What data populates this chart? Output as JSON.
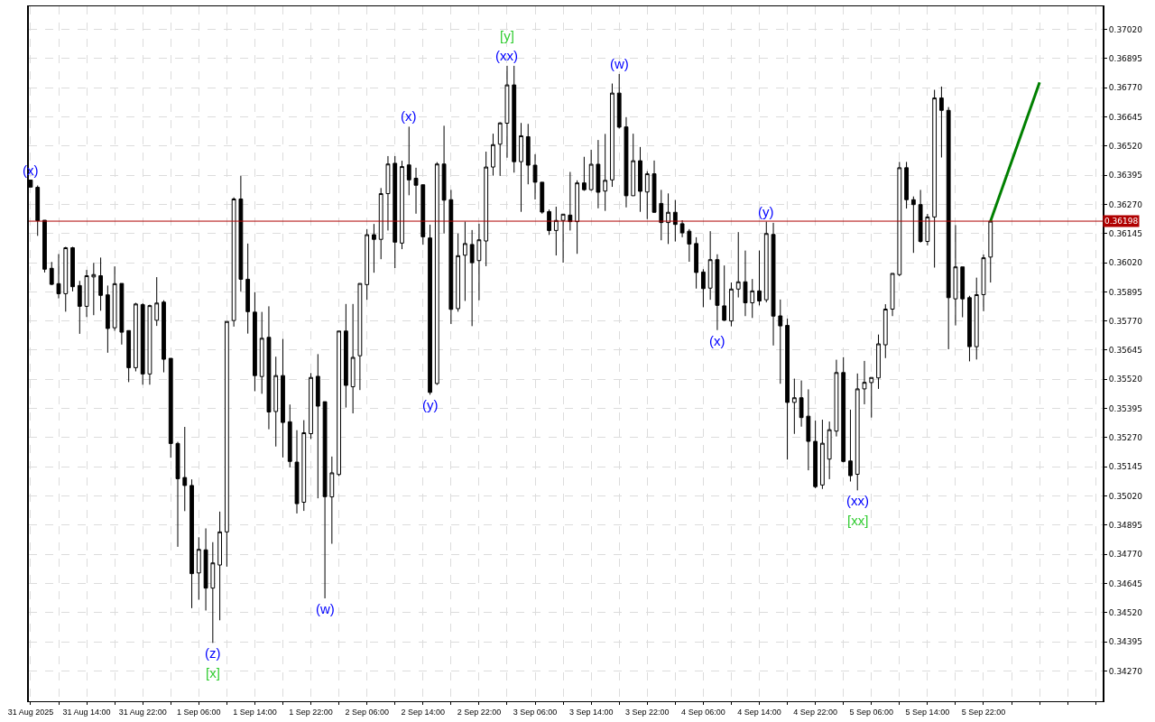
{
  "chart_data": {
    "type": "candlestick",
    "x": [
      "2025-08-31T06:00",
      "2025-08-31T07:00",
      "2025-08-31T08:00",
      "2025-08-31T09:00",
      "2025-08-31T10:00",
      "2025-08-31T11:00",
      "2025-08-31T12:00",
      "2025-08-31T13:00",
      "2025-08-31T14:00",
      "2025-08-31T15:00",
      "2025-08-31T16:00",
      "2025-08-31T17:00",
      "2025-08-31T18:00",
      "2025-08-31T19:00",
      "2025-08-31T20:00",
      "2025-08-31T21:00",
      "2025-08-31T22:00",
      "2025-08-31T23:00",
      "2025-09-01T00:00",
      "2025-09-01T01:00",
      "2025-09-01T02:00",
      "2025-09-01T03:00",
      "2025-09-01T04:00",
      "2025-09-01T05:00",
      "2025-09-01T06:00",
      "2025-09-01T07:00",
      "2025-09-01T08:00",
      "2025-09-01T09:00",
      "2025-09-01T10:00",
      "2025-09-01T11:00",
      "2025-09-01T12:00",
      "2025-09-01T13:00",
      "2025-09-01T14:00",
      "2025-09-01T15:00",
      "2025-09-01T16:00",
      "2025-09-01T17:00",
      "2025-09-01T18:00",
      "2025-09-01T19:00",
      "2025-09-01T20:00",
      "2025-09-01T21:00",
      "2025-09-01T22:00",
      "2025-09-01T23:00",
      "2025-09-02T00:00",
      "2025-09-02T01:00",
      "2025-09-02T02:00",
      "2025-09-02T03:00",
      "2025-09-02T04:00",
      "2025-09-02T05:00",
      "2025-09-02T06:00",
      "2025-09-02T07:00",
      "2025-09-02T08:00",
      "2025-09-02T09:00",
      "2025-09-02T10:00",
      "2025-09-02T11:00",
      "2025-09-02T12:00",
      "2025-09-02T13:00",
      "2025-09-02T14:00",
      "2025-09-02T15:00",
      "2025-09-02T16:00",
      "2025-09-02T17:00",
      "2025-09-02T18:00",
      "2025-09-02T19:00",
      "2025-09-02T20:00",
      "2025-09-02T21:00",
      "2025-09-02T22:00",
      "2025-09-02T23:00",
      "2025-09-03T00:00",
      "2025-09-03T01:00",
      "2025-09-03T02:00",
      "2025-09-03T03:00",
      "2025-09-03T04:00",
      "2025-09-03T05:00",
      "2025-09-03T06:00",
      "2025-09-03T07:00",
      "2025-09-03T08:00",
      "2025-09-03T09:00",
      "2025-09-03T10:00",
      "2025-09-03T11:00",
      "2025-09-03T12:00",
      "2025-09-03T13:00",
      "2025-09-03T14:00",
      "2025-09-03T15:00",
      "2025-09-03T16:00",
      "2025-09-03T17:00",
      "2025-09-03T18:00",
      "2025-09-03T19:00",
      "2025-09-03T20:00",
      "2025-09-03T21:00",
      "2025-09-03T22:00",
      "2025-09-03T23:00",
      "2025-09-04T00:00",
      "2025-09-04T01:00",
      "2025-09-04T02:00",
      "2025-09-04T03:00",
      "2025-09-04T04:00",
      "2025-09-04T05:00",
      "2025-09-04T06:00",
      "2025-09-04T07:00",
      "2025-09-04T08:00",
      "2025-09-04T09:00",
      "2025-09-04T10:00",
      "2025-09-04T11:00",
      "2025-09-04T12:00",
      "2025-09-04T13:00",
      "2025-09-04T14:00",
      "2025-09-04T15:00",
      "2025-09-04T16:00",
      "2025-09-04T17:00",
      "2025-09-04T18:00",
      "2025-09-04T19:00",
      "2025-09-04T20:00",
      "2025-09-04T21:00",
      "2025-09-04T22:00",
      "2025-09-04T23:00",
      "2025-09-05T00:00",
      "2025-09-05T01:00",
      "2025-09-05T02:00",
      "2025-09-05T03:00",
      "2025-09-05T04:00",
      "2025-09-05T05:00",
      "2025-09-05T06:00",
      "2025-09-05T07:00",
      "2025-09-05T08:00",
      "2025-09-05T09:00",
      "2025-09-05T10:00",
      "2025-09-05T11:00",
      "2025-09-05T12:00",
      "2025-09-05T13:00",
      "2025-09-05T14:00",
      "2025-09-05T15:00",
      "2025-09-05T16:00",
      "2025-09-05T17:00",
      "2025-09-05T18:00",
      "2025-09-05T19:00",
      "2025-09-05T20:00",
      "2025-09-05T21:00",
      "2025-09-05T22:00",
      "2025-09-05T23:00"
    ],
    "ohlc": [
      [
        0.36374,
        0.36374,
        0.36344,
        0.36344
      ],
      [
        0.36343,
        0.36351,
        0.36135,
        0.362
      ],
      [
        0.36202,
        0.36202,
        0.35978,
        0.35992
      ],
      [
        0.35996,
        0.36023,
        0.35924,
        0.35927
      ],
      [
        0.3593,
        0.36057,
        0.35867,
        0.35887
      ],
      [
        0.35887,
        0.36088,
        0.3581,
        0.36084
      ],
      [
        0.36084,
        0.36088,
        0.35897,
        0.35917
      ],
      [
        0.35922,
        0.35942,
        0.35715,
        0.35833
      ],
      [
        0.35833,
        0.35989,
        0.35787,
        0.35964
      ],
      [
        0.35959,
        0.36019,
        0.35795,
        0.35969
      ],
      [
        0.35964,
        0.36042,
        0.35814,
        0.3588
      ],
      [
        0.35882,
        0.35922,
        0.35634,
        0.35738
      ],
      [
        0.35741,
        0.36004,
        0.35728,
        0.3593
      ],
      [
        0.35931,
        0.35931,
        0.35669,
        0.35722
      ],
      [
        0.35729,
        0.35729,
        0.35508,
        0.3557
      ],
      [
        0.3557,
        0.35848,
        0.35554,
        0.35843
      ],
      [
        0.3584,
        0.35846,
        0.35497,
        0.35543
      ],
      [
        0.35543,
        0.3584,
        0.35497,
        0.35836
      ],
      [
        0.35773,
        0.35958,
        0.35749,
        0.35847
      ],
      [
        0.35851,
        0.35859,
        0.3555,
        0.35606
      ],
      [
        0.3561,
        0.3561,
        0.35184,
        0.35245
      ],
      [
        0.35245,
        0.35252,
        0.34802,
        0.35094
      ],
      [
        0.35099,
        0.35316,
        0.34955,
        0.35065
      ],
      [
        0.35065,
        0.35091,
        0.34539,
        0.34687
      ],
      [
        0.3469,
        0.34843,
        0.34575,
        0.34791
      ],
      [
        0.34789,
        0.34881,
        0.34529,
        0.34625
      ],
      [
        0.34625,
        0.34822,
        0.3439,
        0.34733
      ],
      [
        0.34724,
        0.34953,
        0.34487,
        0.34866
      ],
      [
        0.34866,
        0.35768,
        0.34717,
        0.35768
      ],
      [
        0.35772,
        0.363,
        0.35746,
        0.36293
      ],
      [
        0.36293,
        0.36392,
        0.35897,
        0.35949
      ],
      [
        0.35949,
        0.36102,
        0.35716,
        0.3581
      ],
      [
        0.35808,
        0.35894,
        0.35469,
        0.35536
      ],
      [
        0.35532,
        0.35809,
        0.35458,
        0.35696
      ],
      [
        0.357,
        0.35833,
        0.35306,
        0.3538
      ],
      [
        0.35382,
        0.35617,
        0.35232,
        0.35536
      ],
      [
        0.35536,
        0.35693,
        0.35185,
        0.35335
      ],
      [
        0.35338,
        0.35412,
        0.35143,
        0.35168
      ],
      [
        0.35165,
        0.35302,
        0.34945,
        0.34987
      ],
      [
        0.34993,
        0.35345,
        0.34956,
        0.35291
      ],
      [
        0.35287,
        0.35547,
        0.35264,
        0.35528
      ],
      [
        0.35533,
        0.35628,
        0.3501,
        0.35405
      ],
      [
        0.35424,
        0.35424,
        0.34581,
        0.35017
      ],
      [
        0.35016,
        0.35189,
        0.34815,
        0.35119
      ],
      [
        0.35112,
        0.35727,
        0.35105,
        0.35727
      ],
      [
        0.35727,
        0.35843,
        0.35399,
        0.35494
      ],
      [
        0.35488,
        0.35843,
        0.35374,
        0.35614
      ],
      [
        0.35621,
        0.35931,
        0.35474,
        0.35931
      ],
      [
        0.35926,
        0.36164,
        0.35861,
        0.3614
      ],
      [
        0.3614,
        0.36186,
        0.35977,
        0.3612
      ],
      [
        0.3612,
        0.3634,
        0.36035,
        0.36316
      ],
      [
        0.36316,
        0.36477,
        0.36158,
        0.36443
      ],
      [
        0.36446,
        0.36477,
        0.35997,
        0.36108
      ],
      [
        0.36104,
        0.36457,
        0.36078,
        0.36432
      ],
      [
        0.36439,
        0.36603,
        0.36309,
        0.36375
      ],
      [
        0.36382,
        0.36427,
        0.3623,
        0.36352
      ],
      [
        0.36354,
        0.36354,
        0.36097,
        0.36131
      ],
      [
        0.36126,
        0.36183,
        0.35454,
        0.35464
      ],
      [
        0.35502,
        0.36451,
        0.35496,
        0.36443
      ],
      [
        0.36443,
        0.36607,
        0.36145,
        0.36288
      ],
      [
        0.3629,
        0.36332,
        0.35757,
        0.3582
      ],
      [
        0.35823,
        0.36145,
        0.3581,
        0.3605
      ],
      [
        0.36052,
        0.36196,
        0.35856,
        0.36102
      ],
      [
        0.36098,
        0.3616,
        0.35748,
        0.3602
      ],
      [
        0.36029,
        0.36187,
        0.35859,
        0.36118
      ],
      [
        0.36113,
        0.36496,
        0.36005,
        0.3643
      ],
      [
        0.3643,
        0.36573,
        0.36393,
        0.36526
      ],
      [
        0.36528,
        0.36622,
        0.36392,
        0.36619
      ],
      [
        0.36618,
        0.36864,
        0.3647,
        0.36782
      ],
      [
        0.36782,
        0.36864,
        0.36406,
        0.36453
      ],
      [
        0.36453,
        0.36619,
        0.36238,
        0.36564
      ],
      [
        0.3656,
        0.36615,
        0.36356,
        0.36438
      ],
      [
        0.36438,
        0.36485,
        0.36291,
        0.36365
      ],
      [
        0.36365,
        0.36365,
        0.3623,
        0.36237
      ],
      [
        0.36239,
        0.36248,
        0.36139,
        0.36158
      ],
      [
        0.36158,
        0.3626,
        0.36051,
        0.36201
      ],
      [
        0.36201,
        0.36228,
        0.3602,
        0.36228
      ],
      [
        0.36224,
        0.36409,
        0.36158,
        0.36196
      ],
      [
        0.36196,
        0.36373,
        0.36058,
        0.36362
      ],
      [
        0.36362,
        0.36474,
        0.36328,
        0.36333
      ],
      [
        0.36333,
        0.36504,
        0.36328,
        0.36442
      ],
      [
        0.36442,
        0.36546,
        0.36253,
        0.36322
      ],
      [
        0.36327,
        0.36572,
        0.36242,
        0.36373
      ],
      [
        0.36375,
        0.36788,
        0.36345,
        0.36747
      ],
      [
        0.36747,
        0.36829,
        0.36595,
        0.36601
      ],
      [
        0.36602,
        0.36644,
        0.36257,
        0.36307
      ],
      [
        0.36307,
        0.36573,
        0.36307,
        0.36457
      ],
      [
        0.36457,
        0.36516,
        0.36238,
        0.36326
      ],
      [
        0.36323,
        0.36412,
        0.36207,
        0.36401
      ],
      [
        0.36401,
        0.36458,
        0.36234,
        0.36236
      ],
      [
        0.36274,
        0.36332,
        0.36116,
        0.36192
      ],
      [
        0.36192,
        0.36317,
        0.361,
        0.36236
      ],
      [
        0.36236,
        0.36289,
        0.36111,
        0.36184
      ],
      [
        0.36187,
        0.36202,
        0.36129,
        0.36148
      ],
      [
        0.36155,
        0.36164,
        0.36024,
        0.361
      ],
      [
        0.36102,
        0.36129,
        0.35909,
        0.35978
      ],
      [
        0.3598,
        0.35992,
        0.35829,
        0.35909
      ],
      [
        0.35911,
        0.36155,
        0.35861,
        0.36033
      ],
      [
        0.36033,
        0.36056,
        0.35731,
        0.35837
      ],
      [
        0.35835,
        0.36008,
        0.3577,
        0.35773
      ],
      [
        0.3577,
        0.35935,
        0.35747,
        0.35907
      ],
      [
        0.35907,
        0.36151,
        0.35871,
        0.35938
      ],
      [
        0.35938,
        0.36072,
        0.35791,
        0.35848
      ],
      [
        0.35848,
        0.3595,
        0.35783,
        0.35899
      ],
      [
        0.35899,
        0.36072,
        0.35837,
        0.35856
      ],
      [
        0.35861,
        0.36196,
        0.3585,
        0.36145
      ],
      [
        0.36141,
        0.36191,
        0.35665,
        0.35791
      ],
      [
        0.35792,
        0.35862,
        0.35501,
        0.35749
      ],
      [
        0.35751,
        0.3578,
        0.35176,
        0.35421
      ],
      [
        0.35421,
        0.35523,
        0.35286,
        0.35441
      ],
      [
        0.35441,
        0.35515,
        0.35317,
        0.35356
      ],
      [
        0.35362,
        0.35477,
        0.3513,
        0.35254
      ],
      [
        0.35254,
        0.35343,
        0.35053,
        0.3506
      ],
      [
        0.35067,
        0.35347,
        0.3505,
        0.35246
      ],
      [
        0.35178,
        0.35339,
        0.35092,
        0.35304
      ],
      [
        0.35298,
        0.35604,
        0.35275,
        0.35549
      ],
      [
        0.35549,
        0.35615,
        0.35164,
        0.35168
      ],
      [
        0.3517,
        0.3539,
        0.35082,
        0.35107
      ],
      [
        0.35113,
        0.35545,
        0.35044,
        0.35479
      ],
      [
        0.35479,
        0.35599,
        0.35413,
        0.35507
      ],
      [
        0.35506,
        0.35528,
        0.35356,
        0.35528
      ],
      [
        0.35526,
        0.35712,
        0.35479,
        0.35672
      ],
      [
        0.35668,
        0.35842,
        0.35611,
        0.35821
      ],
      [
        0.35821,
        0.35974,
        0.35791,
        0.35974
      ],
      [
        0.35969,
        0.36452,
        0.35962,
        0.36427
      ],
      [
        0.36427,
        0.36452,
        0.36252,
        0.3629
      ],
      [
        0.3629,
        0.36304,
        0.36062,
        0.36269
      ],
      [
        0.36269,
        0.36332,
        0.36106,
        0.36111
      ],
      [
        0.36111,
        0.36229,
        0.36094,
        0.36216
      ],
      [
        0.36216,
        0.36761,
        0.35999,
        0.36726
      ],
      [
        0.36726,
        0.36775,
        0.36471,
        0.36673
      ],
      [
        0.36673,
        0.36687,
        0.35649,
        0.3587
      ],
      [
        0.35865,
        0.36181,
        0.35751,
        0.36002
      ],
      [
        0.36002,
        0.36002,
        0.35786,
        0.35865
      ],
      [
        0.3587,
        0.35878,
        0.35597,
        0.3566
      ],
      [
        0.3566,
        0.35956,
        0.35605,
        0.35883
      ],
      [
        0.35883,
        0.36055,
        0.35812,
        0.36041
      ],
      [
        0.36044,
        0.36199,
        0.35935,
        0.36198
      ]
    ],
    "series": [
      {
        "type": "line",
        "color": "#008000",
        "x": [
          "2025-09-05T23:00",
          "2025-09-06T06:00"
        ],
        "values": [
          0.36198,
          0.36793
        ]
      }
    ],
    "xlim": [
      "2025-08-31T05:45",
      "2025-09-06T15:00"
    ],
    "xticks": [
      {
        "value": "2025-08-31T06:00",
        "label": "31 Aug 2025"
      },
      {
        "value": "2025-08-31T10:00",
        "label": null
      },
      {
        "value": "2025-08-31T14:00",
        "label": "31 Aug 14:00"
      },
      {
        "value": "2025-08-31T18:00",
        "label": null
      },
      {
        "value": "2025-08-31T22:00",
        "label": "31 Aug 22:00"
      },
      {
        "value": "2025-09-01T02:00",
        "label": null
      },
      {
        "value": "2025-09-01T06:00",
        "label": "1 Sep 06:00"
      },
      {
        "value": "2025-09-01T10:00",
        "label": null
      },
      {
        "value": "2025-09-01T14:00",
        "label": "1 Sep 14:00"
      },
      {
        "value": "2025-09-01T18:00",
        "label": null
      },
      {
        "value": "2025-09-01T22:00",
        "label": "1 Sep 22:00"
      },
      {
        "value": "2025-09-02T02:00",
        "label": null
      },
      {
        "value": "2025-09-02T06:00",
        "label": "2 Sep 06:00"
      },
      {
        "value": "2025-09-02T10:00",
        "label": null
      },
      {
        "value": "2025-09-02T14:00",
        "label": "2 Sep 14:00"
      },
      {
        "value": "2025-09-02T18:00",
        "label": null
      },
      {
        "value": "2025-09-02T22:00",
        "label": "2 Sep 22:00"
      },
      {
        "value": "2025-09-03T02:00",
        "label": null
      },
      {
        "value": "2025-09-03T06:00",
        "label": "3 Sep 06:00"
      },
      {
        "value": "2025-09-03T10:00",
        "label": null
      },
      {
        "value": "2025-09-03T14:00",
        "label": "3 Sep 14:00"
      },
      {
        "value": "2025-09-03T18:00",
        "label": null
      },
      {
        "value": "2025-09-03T22:00",
        "label": "3 Sep 22:00"
      },
      {
        "value": "2025-09-04T02:00",
        "label": null
      },
      {
        "value": "2025-09-04T06:00",
        "label": "4 Sep 06:00"
      },
      {
        "value": "2025-09-04T10:00",
        "label": null
      },
      {
        "value": "2025-09-04T14:00",
        "label": "4 Sep 14:00"
      },
      {
        "value": "2025-09-04T18:00",
        "label": null
      },
      {
        "value": "2025-09-04T22:00",
        "label": "4 Sep 22:00"
      },
      {
        "value": "2025-09-05T02:00",
        "label": null
      },
      {
        "value": "2025-09-05T06:00",
        "label": "5 Sep 06:00"
      },
      {
        "value": "2025-09-05T10:00",
        "label": null
      },
      {
        "value": "2025-09-05T14:00",
        "label": "5 Sep 14:00"
      },
      {
        "value": "2025-09-05T18:00",
        "label": null
      },
      {
        "value": "2025-09-05T22:00",
        "label": "5 Sep 22:00"
      },
      {
        "value": "2025-09-06T02:00",
        "label": null
      },
      {
        "value": "2025-09-06T06:00",
        "label": null
      },
      {
        "value": "2025-09-06T10:00",
        "label": null
      },
      {
        "value": "2025-09-06T14:00",
        "label": null
      }
    ],
    "ylim": [
      0.3414,
      0.37119
    ],
    "yticks": [
      {
        "value": 0.3427,
        "label": "0.34270"
      },
      0.34395,
      {
        "value": 0.3452,
        "label": "0.34520"
      },
      0.34645,
      {
        "value": 0.3477,
        "label": "0.34770"
      },
      0.34895,
      {
        "value": 0.3502,
        "label": "0.35020"
      },
      0.35145,
      {
        "value": 0.3527,
        "label": "0.35270"
      },
      0.35395,
      {
        "value": 0.3552,
        "label": "0.35520"
      },
      0.35645,
      {
        "value": 0.3577,
        "label": "0.35770"
      },
      0.35895,
      {
        "value": 0.3602,
        "label": "0.36020"
      },
      0.36145,
      {
        "value": 0.3627,
        "label": "0.36270"
      },
      0.36395,
      {
        "value": 0.3652,
        "label": "0.36520"
      },
      0.36645,
      {
        "value": 0.3677,
        "label": "0.36770"
      },
      0.36895,
      {
        "value": 0.3702,
        "label": "0.37020"
      }
    ],
    "ref_lines": [
      {
        "axis": "y",
        "value": 0.36198,
        "label": "0.36198",
        "color": "#b00000"
      }
    ],
    "annotations": [
      {
        "text": "(x)",
        "x": "2025-08-31T06:00",
        "y": 0.36374
      },
      {
        "text": "(z)",
        "x": "2025-09-01T08:00",
        "y": 0.3439
      },
      {
        "text": "[x]",
        "x": "2025-09-01T08:00",
        "y": 0.3439
      },
      {
        "text": "(w)",
        "x": "2025-09-02T00:00",
        "y": 0.34581
      },
      {
        "text": "(x)",
        "x": "2025-09-02T12:00",
        "y": 0.36603
      },
      {
        "text": "(y)",
        "x": "2025-09-02T15:00",
        "y": 0.35454
      },
      {
        "text": "(xx)",
        "x": "2025-09-03T02:00",
        "y": 0.36864
      },
      {
        "text": "[y]",
        "x": "2025-09-03T02:00",
        "y": 0.36864
      },
      {
        "text": "(w)",
        "x": "2025-09-03T18:00",
        "y": 0.36829
      },
      {
        "text": "(x)",
        "x": "2025-09-04T08:00",
        "y": 0.35731
      },
      {
        "text": "(y)",
        "x": "2025-09-04T15:00",
        "y": 0.36196
      },
      {
        "text": "(xx)",
        "x": "2025-09-05T04:00",
        "y": 0.35044
      },
      {
        "text": "[xx]",
        "x": "2025-09-05T04:00",
        "y": 0.35044
      }
    ],
    "grid": true
  }
}
